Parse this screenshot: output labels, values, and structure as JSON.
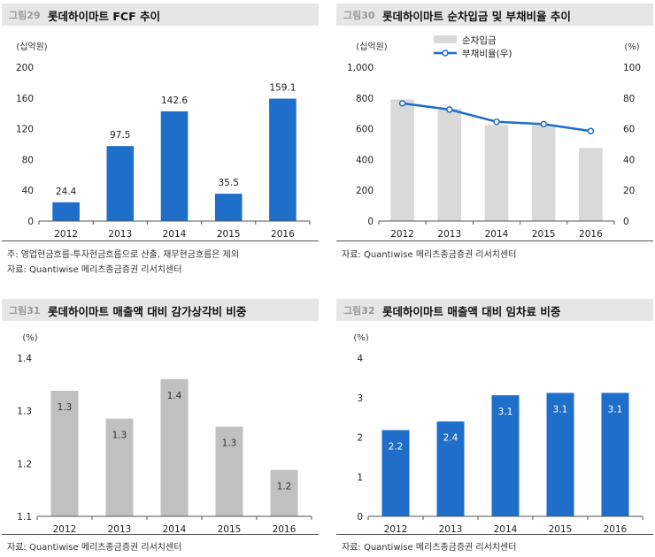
{
  "panels": [
    {
      "id": "fig29",
      "fig_num": "그림29",
      "title": "롯데하이마트 FCF 추이",
      "notes": [
        "주: 영업현금흐름-투자현금흐름으로 산출, 재무현금흐름은 제외",
        "자료: Quantiwise 메리츠종금증권 리서치센터"
      ],
      "chart_data": {
        "type": "bar",
        "categories": [
          "2012",
          "2013",
          "2014",
          "2015",
          "2016"
        ],
        "series": [
          {
            "values": [
              24.4,
              97.5,
              142.6,
              35.5,
              159.1
            ],
            "color": "#1f6ec9"
          }
        ],
        "data_labels": [
          "24.4",
          "97.5",
          "142.6",
          "35.5",
          "159.1"
        ],
        "label_position": "above",
        "ylabel": "(십억원)",
        "ylim": [
          0,
          200
        ],
        "yticks": [
          0,
          40,
          80,
          120,
          160,
          200
        ],
        "ytick_labels": [
          "0",
          "40",
          "80",
          "120",
          "160",
          "200"
        ],
        "grid": false
      }
    },
    {
      "id": "fig30",
      "fig_num": "그림30",
      "title": "롯데하이마트 순차입금 및 부채비율 추이",
      "notes": [
        "자료: Quantiwise 메리츠종금증권 리서치센터"
      ],
      "chart_data": {
        "type": "bar",
        "categories": [
          "2012",
          "2013",
          "2014",
          "2015",
          "2016"
        ],
        "series": [
          {
            "name": "순차입금",
            "type": "bar",
            "axis": "left",
            "values": [
              790,
              730,
              625,
              625,
              475
            ],
            "color": "#d9d9d9"
          },
          {
            "name": "부채비율(우)",
            "type": "line",
            "axis": "right",
            "values": [
              76.5,
              72.5,
              64.5,
              63,
              58.5
            ],
            "color": "#1f6ec9"
          }
        ],
        "ylabel": "(십억원)",
        "ylim": [
          0,
          1000
        ],
        "yticks": [
          0,
          200,
          400,
          600,
          800,
          1000
        ],
        "ytick_labels": [
          "0",
          "200",
          "400",
          "600",
          "800",
          "1,000"
        ],
        "y2label": "(%)",
        "y2lim": [
          0,
          100
        ],
        "y2ticks": [
          0,
          20,
          40,
          60,
          80,
          100
        ],
        "y2tick_labels": [
          "0",
          "20",
          "40",
          "60",
          "80",
          "100"
        ],
        "legend": "top-center",
        "grid": false
      }
    },
    {
      "id": "fig31",
      "fig_num": "그림31",
      "title": "롯데하이마트 매출액 대비 감가상각비 비중",
      "notes": [
        "자료: Quantiwise 메리츠종금증권 리서치센터"
      ],
      "chart_data": {
        "type": "bar",
        "categories": [
          "2012",
          "2013",
          "2014",
          "2015",
          "2016"
        ],
        "series": [
          {
            "values": [
              1.338,
              1.285,
              1.36,
              1.27,
              1.188
            ],
            "color": "#c0c0c0"
          }
        ],
        "data_labels": [
          "1.3",
          "1.3",
          "1.4",
          "1.3",
          "1.2"
        ],
        "label_position": "inside",
        "label_color": "#333333",
        "ylabel": "(%)",
        "ylim": [
          1.1,
          1.4
        ],
        "yticks": [
          1.1,
          1.2,
          1.3,
          1.4
        ],
        "ytick_labels": [
          "1.1",
          "1.2",
          "1.3",
          "1.4"
        ],
        "grid": false
      }
    },
    {
      "id": "fig32",
      "fig_num": "그림32",
      "title": "롯데하이마트 매출액 대비 임차료 비중",
      "notes": [
        "자료: Quantiwise 메리츠종금증권 리서치센터"
      ],
      "chart_data": {
        "type": "bar",
        "categories": [
          "2012",
          "2013",
          "2014",
          "2015",
          "2016"
        ],
        "series": [
          {
            "values": [
              2.18,
              2.4,
              3.06,
              3.12,
              3.12
            ],
            "color": "#1f6ec9"
          }
        ],
        "data_labels": [
          "2.2",
          "2.4",
          "3.1",
          "3.1",
          "3.1"
        ],
        "label_position": "inside",
        "label_color": "#ffffff",
        "ylabel": "(%)",
        "ylim": [
          0,
          4
        ],
        "yticks": [
          0,
          1,
          2,
          3,
          4
        ],
        "ytick_labels": [
          "0",
          "1",
          "2",
          "3",
          "4"
        ],
        "grid": false
      }
    }
  ]
}
